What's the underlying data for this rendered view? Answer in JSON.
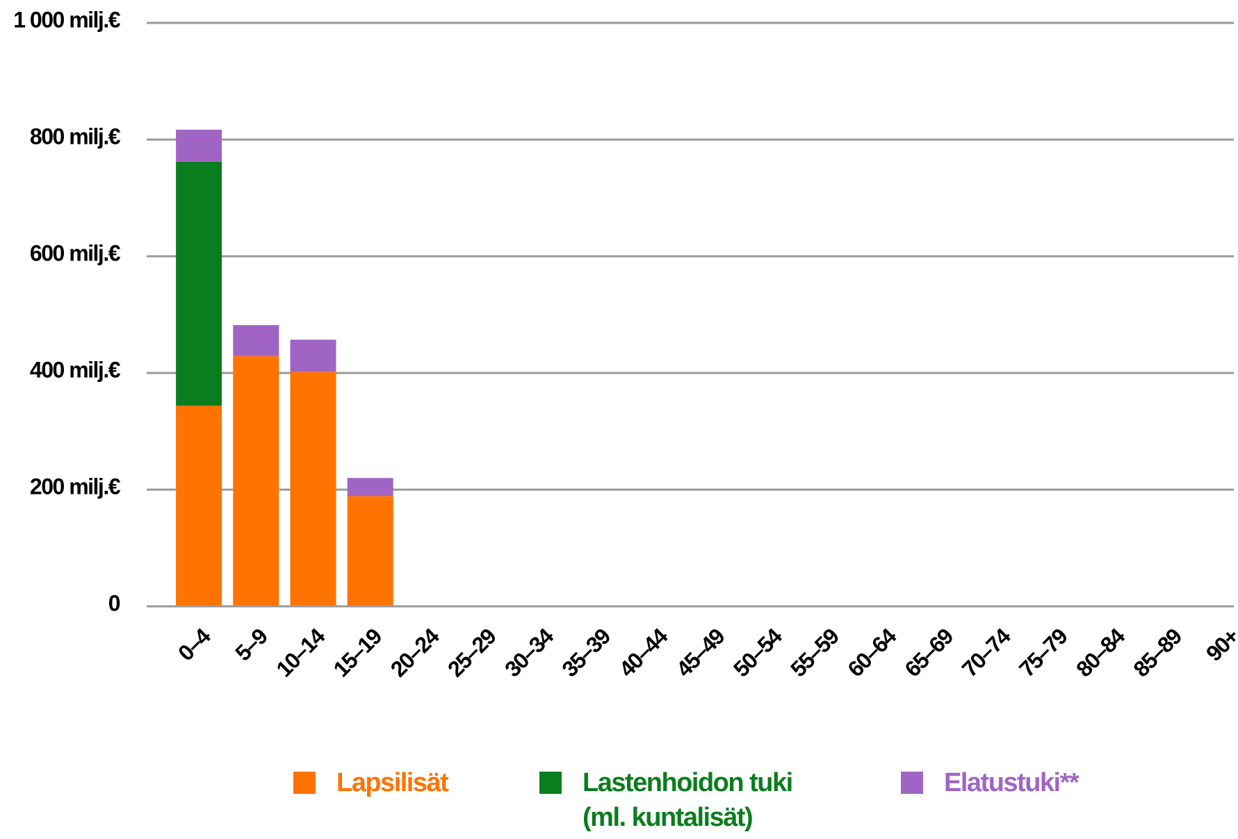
{
  "chart_data": {
    "type": "stacked-bar",
    "categories": [
      "0–4",
      "5–9",
      "10–14",
      "15–19",
      "20–24",
      "25–29",
      "30–34",
      "35–39",
      "40–44",
      "45–49",
      "50–54",
      "55–59",
      "60–64",
      "65–69",
      "70–74",
      "75–79",
      "80–84",
      "85–89",
      "90+"
    ],
    "series": [
      {
        "name": "Lapsilisät",
        "color": "#ff7300",
        "values": [
          344,
          429,
          402,
          189,
          0,
          0,
          0,
          0,
          0,
          0,
          0,
          0,
          0,
          0,
          0,
          0,
          0,
          0,
          0
        ]
      },
      {
        "name": "Lastenhoidon tuki (ml. kuntalisät)",
        "color": "#0a7d1e",
        "values": [
          418,
          0,
          0,
          0,
          0,
          0,
          0,
          0,
          0,
          0,
          0,
          0,
          0,
          0,
          0,
          0,
          0,
          0,
          0
        ]
      },
      {
        "name": "Elatustuki**",
        "color": "#a065c4",
        "values": [
          55,
          53,
          55,
          31,
          0,
          0,
          0,
          0,
          0,
          0,
          0,
          0,
          0,
          0,
          0,
          0,
          0,
          0,
          0
        ]
      }
    ],
    "ylim": [
      0,
      1000
    ],
    "yticks": [
      0,
      {
        "value": 200,
        "label": "200 milj.€"
      },
      {
        "value": 400,
        "label": "400 milj.€"
      },
      {
        "value": 600,
        "label": "600 milj.€"
      },
      {
        "value": 800,
        "label": "800 milj.€"
      },
      {
        "value": 1000,
        "label": "1 000 milj.€"
      }
    ],
    "grid": true
  }
}
